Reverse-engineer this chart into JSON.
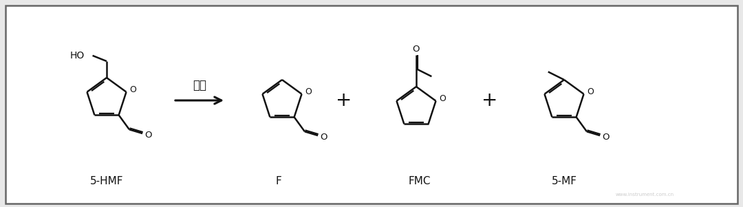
{
  "background_color": "#e8e8e8",
  "panel_color": "#ffffff",
  "border_color": "#666666",
  "line_color": "#111111",
  "label_5hmf": "5-HMF",
  "label_f": "F",
  "label_fmc": "FMC",
  "label_5mf": "5-MF",
  "arrow_label": "水解",
  "figsize": [
    10.8,
    3.01
  ],
  "dpi": 100
}
